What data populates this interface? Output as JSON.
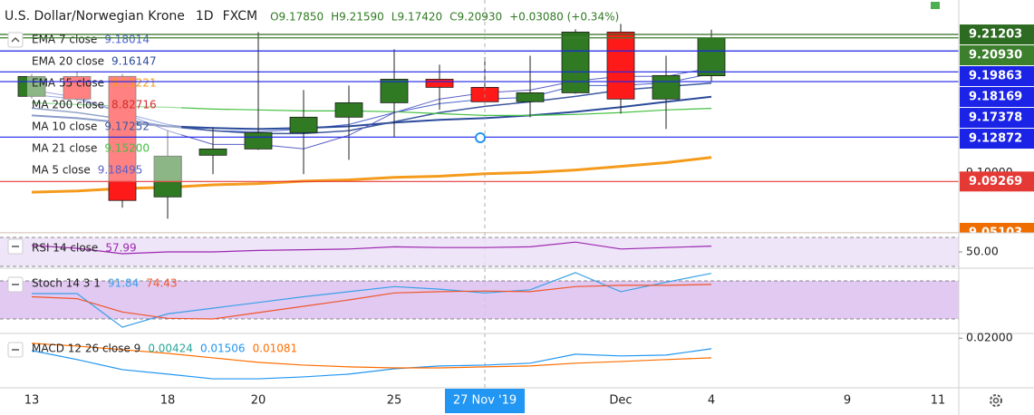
{
  "header": {
    "symbol": "U.S. Dollar/Norwegian Krone",
    "interval": "1D",
    "source": "FXCM",
    "ohlc": [
      "O9.17850",
      "H9.21590",
      "L9.17420",
      "C9.20930",
      "+0.03080 (+0.34%)"
    ]
  },
  "chart_data": [
    {
      "type": "candlestick",
      "categories": [
        "13",
        null,
        null,
        "18",
        null,
        "20",
        null,
        null,
        "25",
        null,
        "27 Nov '19",
        null,
        null,
        "Dec",
        null,
        "4",
        null,
        null,
        "9",
        null,
        "11"
      ],
      "crosshair_index": 10,
      "open": [
        9.1618,
        9.1779,
        9.178,
        9.0802,
        9.114,
        9.1191,
        9.1324,
        9.1449,
        9.1566,
        9.1757,
        9.1691,
        9.1574,
        9.1647,
        9.214,
        9.1596,
        9.1785,
        null,
        null,
        null,
        null,
        null
      ],
      "high": [
        9.18,
        9.182,
        9.18,
        9.1339,
        9.1368,
        9.214,
        9.1669,
        9.1706,
        9.2,
        9.1875,
        9.1934,
        9.1948,
        9.2162,
        9.2206,
        9.1948,
        9.2159,
        null,
        null,
        null,
        null,
        null
      ],
      "low": [
        9.16,
        9.158,
        9.0714,
        9.0625,
        9.0986,
        9.1184,
        9.0986,
        9.1103,
        9.1287,
        9.1508,
        9.1559,
        9.1449,
        9.164,
        9.1478,
        9.1353,
        9.1742,
        null,
        null,
        null,
        null,
        null
      ],
      "close": [
        9.1779,
        9.1596,
        9.0773,
        9.1133,
        9.1191,
        9.1324,
        9.1449,
        9.1566,
        9.1757,
        9.1691,
        9.1574,
        9.1647,
        9.214,
        9.1596,
        9.1787,
        9.2093,
        null,
        null,
        null,
        null,
        null
      ],
      "up_color": "#2f7a22",
      "down_color": "#ff1a1a",
      "ylim": [
        9.051,
        9.24
      ],
      "yticks": [
        {
          "value": 9.1,
          "label": "9.10000"
        }
      ],
      "overlays": [
        {
          "name": "EMA 7 close",
          "value_label": "9.18014",
          "color": "#4a63c9",
          "width": 1,
          "values": [
            9.1632,
            9.1596,
            9.1486,
            9.139,
            9.1339,
            9.1331,
            9.1353,
            9.139,
            9.1486,
            9.1559,
            9.1596,
            9.161,
            9.1706,
            9.1706,
            9.1728,
            9.18014,
            null,
            null,
            null,
            null,
            null
          ]
        },
        {
          "name": "EMA 20 close",
          "value_label": "9.16147",
          "color": "#2a4a9a",
          "width": 2,
          "values": [
            9.1463,
            9.1441,
            9.1405,
            9.1375,
            9.1361,
            9.1353,
            9.1361,
            9.1375,
            9.1405,
            9.1427,
            9.1441,
            9.1463,
            9.1493,
            9.153,
            9.1574,
            9.16147,
            null,
            null,
            null,
            null,
            null
          ]
        },
        {
          "name": "EMA 55 close",
          "value_label": "9.11221",
          "color": "#f59b1c",
          "width": 3,
          "values": [
            9.084,
            9.085,
            9.087,
            9.088,
            9.09,
            9.091,
            9.093,
            9.094,
            9.096,
            9.097,
            9.099,
            9.1,
            9.102,
            9.105,
            9.108,
            9.11221,
            null,
            null,
            null,
            null,
            null
          ]
        },
        {
          "name": "MA 200 close",
          "value_label": "8.82716",
          "color": "#d32f2f",
          "width": 1
        },
        {
          "name": "MA 10 close",
          "value_label": "9.17252",
          "color": "#3d5a9e",
          "width": 1.5,
          "values": [
            9.1522,
            9.1486,
            9.1434,
            9.1375,
            9.1339,
            9.1316,
            9.1316,
            9.1339,
            9.1412,
            9.1486,
            9.1537,
            9.1574,
            9.1618,
            9.1669,
            9.1698,
            9.17252,
            null,
            null,
            null,
            null,
            null
          ]
        },
        {
          "name": "MA 21 close",
          "value_label": "9.15200",
          "color": "#43c043",
          "width": 1.2,
          "values": [
            9.1566,
            9.1552,
            9.1537,
            9.153,
            9.1515,
            9.1508,
            9.15,
            9.15,
            9.1493,
            9.1478,
            9.1463,
            9.1463,
            9.1471,
            9.1486,
            9.1508,
            9.152,
            null,
            null,
            null,
            null,
            null
          ]
        },
        {
          "name": "MA 5 close",
          "value_label": "9.18495",
          "color": "#5b5fc7",
          "width": 1,
          "values": [
            9.1669,
            9.161,
            9.1486,
            9.1339,
            9.1228,
            9.1228,
            9.1192,
            9.1302,
            9.1486,
            9.1596,
            9.1647,
            9.1669,
            9.1743,
            9.178,
            9.178,
            9.18495,
            null,
            null,
            null,
            null,
            null
          ]
        }
      ],
      "price_labels": [
        {
          "value": 9.21203,
          "color": "#2d6b22"
        },
        {
          "value": 9.2093,
          "label": "9.20930",
          "color": "#3c7f2c"
        },
        {
          "value": 9.19863,
          "color": "#1a23e6"
        },
        {
          "value": 9.18169,
          "color": "#1a23e6"
        },
        {
          "value": 9.17378,
          "color": "#1a23e6"
        },
        {
          "value": 9.12872,
          "color": "#1a23e6"
        },
        {
          "value": 9.09269,
          "color": "#e53935"
        },
        {
          "value": 9.05103,
          "color": "#ef6c00"
        }
      ]
    },
    {
      "type": "line",
      "legend": "RSI 14 close",
      "ylim": [
        27.5,
        76.25
      ],
      "yticks": [
        {
          "value": 50,
          "label": "50.00"
        }
      ],
      "bands": [
        30,
        70
      ],
      "series": [
        {
          "color": "#9c27b0",
          "values": [
            59,
            55,
            47.5,
            50,
            50,
            52,
            53,
            54,
            57,
            56,
            56,
            57,
            63.5,
            54,
            56,
            57.99,
            null,
            null,
            null,
            null,
            null
          ]
        }
      ]
    },
    {
      "type": "line",
      "legend": "Stoch 14 3 1",
      "ylim": [
        -2.86,
        100
      ],
      "bands": [
        20,
        80
      ],
      "series": [
        {
          "color": "#3aa0e8",
          "values": [
            60,
            60,
            7,
            28,
            37,
            46,
            55,
            63,
            71,
            67,
            61,
            66,
            93,
            63,
            78,
            91.84,
            null,
            null,
            null,
            null,
            null
          ]
        },
        {
          "color": "#f0562b",
          "values": [
            55,
            52,
            31,
            21,
            20,
            30,
            40,
            50,
            61,
            63,
            64,
            63,
            71,
            73,
            73,
            74.43,
            null,
            null,
            null,
            null,
            null
          ]
        }
      ]
    },
    {
      "type": "line",
      "legend": "MACD 12 26 close 9",
      "ylim": [
        -0.0032,
        0.0222
      ],
      "yticks": [
        {
          "value": 0.02,
          "label": "0.02000"
        }
      ],
      "histogram_value": 0.00424,
      "histogram_color": "#26a69a",
      "series": [
        {
          "color": "#2196f3",
          "values": [
            0.0142,
            0.01,
            0.0053,
            0.0032,
            0.001,
            0.001,
            0.0019,
            0.0032,
            0.0057,
            0.007,
            0.0074,
            0.0083,
            0.0125,
            0.0117,
            0.0121,
            0.01506,
            null,
            null,
            null,
            null,
            null
          ]
        },
        {
          "color": "#ff6d00",
          "values": [
            0.0176,
            0.0163,
            0.0146,
            0.0129,
            0.0108,
            0.0087,
            0.0074,
            0.0066,
            0.0061,
            0.0061,
            0.0066,
            0.007,
            0.0083,
            0.0091,
            0.01,
            0.01081,
            null,
            null,
            null,
            null,
            null
          ]
        }
      ]
    }
  ]
}
